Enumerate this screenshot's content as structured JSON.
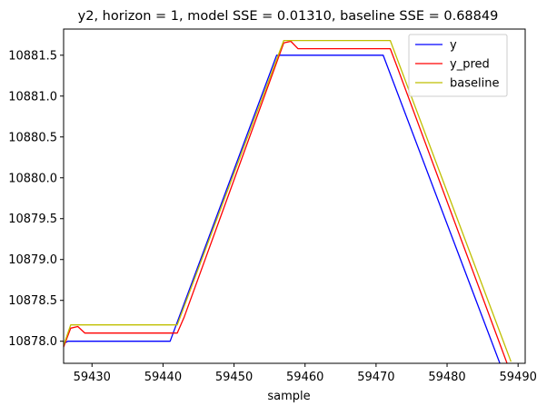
{
  "chart_data": {
    "type": "line",
    "title": "y2, horizon = 1, model SSE = 0.01310, baseline SSE = 0.68849",
    "xlabel": "sample",
    "ylabel": "",
    "xlim": [
      59426,
      59491
    ],
    "ylim": [
      10877.73,
      10881.82
    ],
    "xticks": [
      59430,
      59440,
      59450,
      59460,
      59470,
      59480,
      59490
    ],
    "xtick_labels": [
      "59430",
      "59440",
      "59450",
      "59460",
      "59470",
      "59480",
      "59490"
    ],
    "yticks": [
      10878.0,
      10878.5,
      10879.0,
      10879.5,
      10880.0,
      10880.5,
      10881.0,
      10881.5
    ],
    "ytick_labels": [
      "10878.0",
      "10878.5",
      "10879.0",
      "10879.5",
      "10880.0",
      "10880.5",
      "10881.0",
      "10881.5"
    ],
    "grid": false,
    "legend_position": "top-right",
    "series": [
      {
        "name": "y",
        "color": "#0000ff",
        "points": [
          [
            59426,
            10877.97
          ],
          [
            59426.6,
            10878.0
          ],
          [
            59441,
            10878.0
          ],
          [
            59456,
            10881.5
          ],
          [
            59471,
            10881.5
          ],
          [
            59488,
            10877.6
          ]
        ]
      },
      {
        "name": "y_pred",
        "color": "#ff0000",
        "points": [
          [
            59426,
            10877.93
          ],
          [
            59427,
            10878.16
          ],
          [
            59428,
            10878.18
          ],
          [
            59429,
            10878.1
          ],
          [
            59442,
            10878.1
          ],
          [
            59443,
            10878.3
          ],
          [
            59457,
            10881.65
          ],
          [
            59458,
            10881.67
          ],
          [
            59459,
            10881.58
          ],
          [
            59472,
            10881.58
          ],
          [
            59473,
            10881.35
          ],
          [
            59489,
            10877.6
          ]
        ]
      },
      {
        "name": "baseline",
        "color": "#bfbf00",
        "points": [
          [
            59426,
            10877.95
          ],
          [
            59427,
            10878.2
          ],
          [
            59442,
            10878.2
          ],
          [
            59457,
            10881.68
          ],
          [
            59472,
            10881.68
          ],
          [
            59489,
            10877.75
          ]
        ]
      }
    ]
  }
}
